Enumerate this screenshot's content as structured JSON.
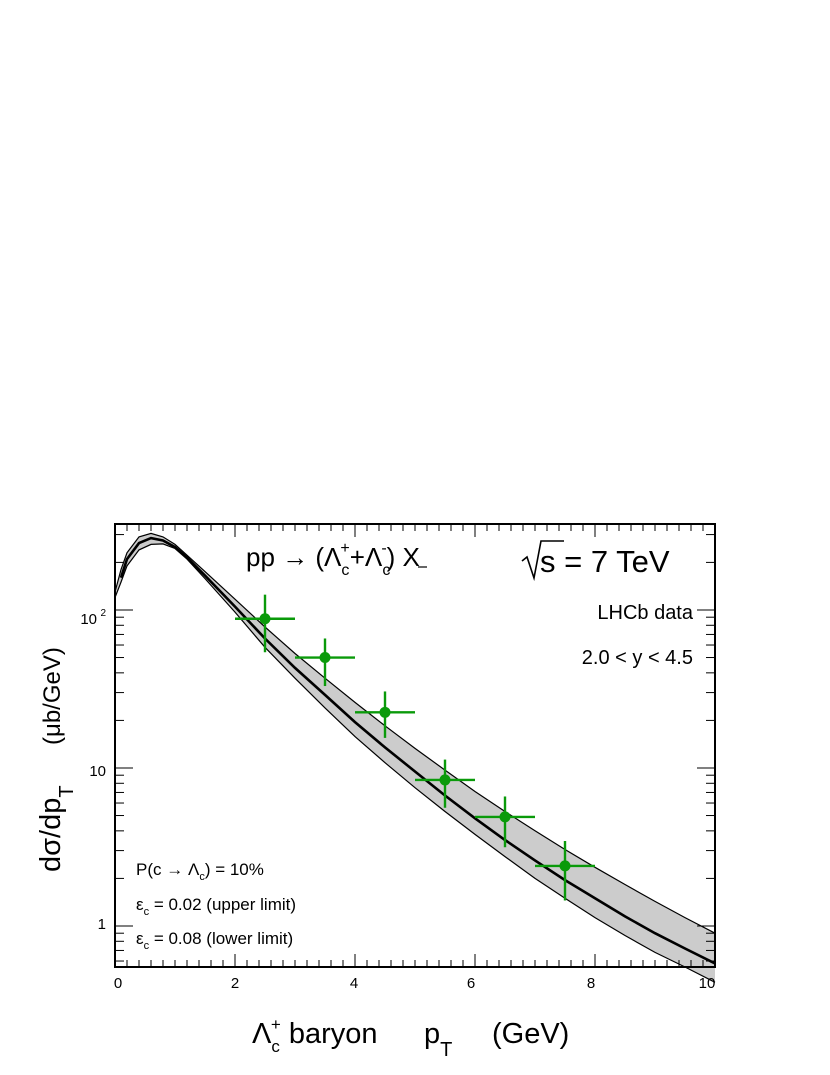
{
  "chart_data": {
    "type": "scatter",
    "title": "pp → (Λ_c^+ + Λ_c̄^-) X",
    "title_parts": {
      "lhs": "pp → (Λ",
      "c1": "c",
      "plus": "+",
      "mid": "+Λ",
      "c2": "c",
      "minus": "-",
      "rhs": ") X"
    },
    "energy_label": "s = 7 TeV",
    "xlabel_parts": {
      "lambda": "Λ",
      "sub": "c",
      "sup": "+",
      "text": " baryon",
      "p": "p",
      "T": "T",
      "unit": "(GeV)"
    },
    "ylabel_parts": {
      "main": "dσ/dp",
      "sub": "T",
      "unit": "(μb/GeV)"
    },
    "xlim": [
      0,
      10
    ],
    "ylim": [
      0.55,
      350
    ],
    "yscale": "log",
    "x_ticks": [
      "0",
      "2",
      "4",
      "6",
      "8",
      "10"
    ],
    "y_ticks": [
      {
        "value": 1,
        "label": "1"
      },
      {
        "value": 10,
        "label": "10"
      },
      {
        "value": 100,
        "label": "10",
        "exp": "2"
      }
    ],
    "annotations": {
      "data_label": "LHCb data",
      "rapidity": "2.0 < y < 4.5",
      "frag_prob": {
        "pre": "P(c → Λ",
        "sub": "c",
        "post": ") = 10%"
      },
      "eps_upper": {
        "pre": "ε",
        "sub": "c",
        "post": " = 0.02 (upper limit)"
      },
      "eps_lower": {
        "pre": "ε",
        "sub": "c",
        "post": " = 0.08 (lower limit)"
      }
    },
    "series": [
      {
        "name": "LHCb data",
        "kind": "points",
        "color": "#0a9a0a",
        "x": [
          2.5,
          3.5,
          4.5,
          5.5,
          6.5,
          7.5
        ],
        "xerr": [
          0.5,
          0.5,
          0.5,
          0.5,
          0.5,
          0.5
        ],
        "y": [
          88,
          50,
          22.5,
          8.4,
          4.9,
          2.4
        ],
        "y_low": [
          54,
          33,
          15.5,
          5.6,
          3.15,
          1.45
        ],
        "y_high": [
          125,
          66,
          30.5,
          11.3,
          6.6,
          3.45
        ]
      },
      {
        "kind": "central",
        "color": "#000000",
        "x": [
          0.1,
          0.2,
          0.4,
          0.6,
          0.8,
          1.0,
          1.2,
          1.5,
          2.0,
          2.5,
          3.0,
          3.5,
          4.0,
          4.5,
          5.0,
          5.5,
          6.0,
          6.5,
          7.0,
          7.5,
          8.0,
          8.5,
          9.0,
          9.5,
          10.0
        ],
        "y": [
          160,
          210,
          265,
          285,
          275,
          250,
          215,
          165,
          105,
          66,
          43,
          29,
          19.5,
          13.5,
          9.5,
          6.7,
          4.8,
          3.5,
          2.6,
          1.95,
          1.5,
          1.15,
          0.9,
          0.72,
          0.58
        ]
      },
      {
        "kind": "band",
        "color": "#cccccc",
        "x": [
          0.0,
          0.1,
          0.2,
          0.4,
          0.6,
          0.8,
          1.0,
          1.2,
          1.5,
          2.0,
          2.5,
          3.0,
          3.5,
          4.0,
          4.5,
          5.0,
          5.5,
          6.0,
          6.5,
          7.0,
          7.5,
          8.0,
          8.5,
          9.0,
          9.5,
          10.0
        ],
        "y_low": [
          120,
          150,
          190,
          240,
          260,
          262,
          245,
          210,
          158,
          97,
          58,
          37,
          24,
          15.8,
          10.8,
          7.5,
          5.3,
          3.8,
          2.75,
          2.0,
          1.5,
          1.13,
          0.87,
          0.68,
          0.55,
          0.44
        ],
        "y_high": [
          130,
          180,
          230,
          290,
          305,
          290,
          260,
          222,
          175,
          117,
          78,
          53,
          37,
          26,
          18.5,
          13.3,
          9.7,
          7.1,
          5.3,
          4.0,
          3.05,
          2.35,
          1.83,
          1.43,
          1.13,
          0.9
        ]
      }
    ]
  }
}
